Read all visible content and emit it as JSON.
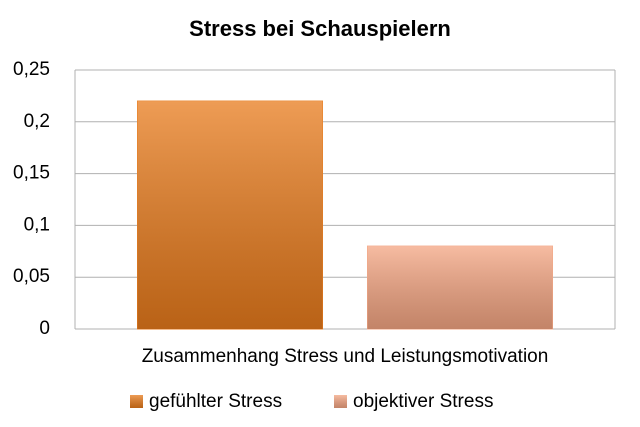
{
  "chart_data": {
    "type": "bar",
    "title": "Stress bei Schauspielern",
    "categories": [
      "Zusammenhang Stress und Leistungsmotivation"
    ],
    "series": [
      {
        "name": "gefühlter Stress",
        "color": "#e87b1c",
        "values": [
          0.22
        ]
      },
      {
        "name": "objektiver Stress",
        "color": "#f4a582",
        "values": [
          0.08
        ]
      }
    ],
    "ylim": [
      0,
      0.25
    ],
    "yticks": [
      0,
      {
        "value": 0.05,
        "label": "0,05"
      },
      {
        "value": 0.1,
        "label": "0,1"
      },
      {
        "value": 0.15,
        "label": "0,15"
      },
      {
        "value": 0.2,
        "label": "0,2"
      },
      {
        "value": 0.25,
        "label": "0,25"
      }
    ],
    "grid": true,
    "legend": "bottom"
  }
}
